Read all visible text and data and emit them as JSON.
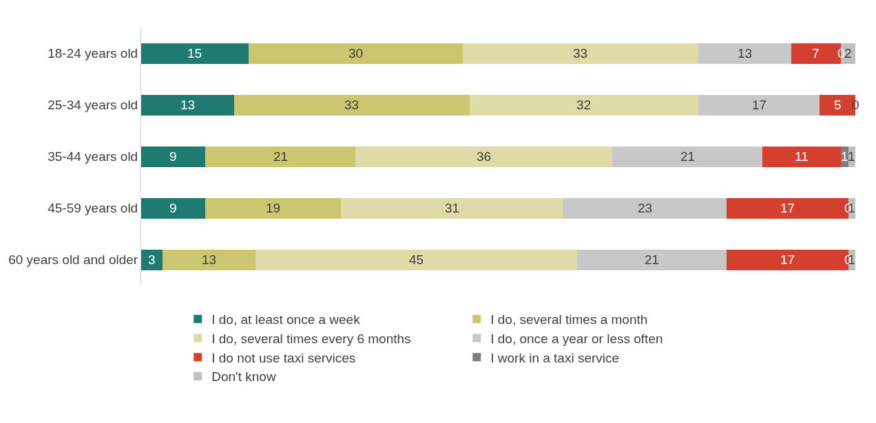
{
  "chart_data": {
    "type": "bar",
    "orientation": "horizontal",
    "stacked": true,
    "legend": "bottom",
    "categories": [
      "18-24 years old",
      "25-34 years old",
      "35-44 years old",
      "45-59 years old",
      "60 years old and older"
    ],
    "series": [
      {
        "name": "I do, at least once a week",
        "color": "#1f7b72",
        "values": [
          15,
          13,
          9,
          9,
          3
        ],
        "value_labels": [
          "15",
          "13",
          "9",
          "9",
          "3"
        ]
      },
      {
        "name": "I do, several times a month",
        "color": "#cbc66f",
        "values": [
          30,
          33,
          21,
          19,
          13
        ],
        "value_labels": [
          "30",
          "33",
          "21",
          "19",
          "13"
        ]
      },
      {
        "name": "I do, several times every 6 months",
        "color": "#dfdba8",
        "values": [
          33,
          32,
          36,
          31,
          45
        ],
        "value_labels": [
          "33",
          "32",
          "36",
          "31",
          "45"
        ]
      },
      {
        "name": "I do, once a year or less often",
        "color": "#c8c8c8",
        "values": [
          13,
          17,
          21,
          23,
          21
        ],
        "value_labels": [
          "13",
          "17",
          "21",
          "23",
          "21"
        ]
      },
      {
        "name": "I do not use taxi services",
        "color": "#d44030",
        "values": [
          7,
          5,
          11,
          17,
          17
        ],
        "value_labels": [
          "7",
          "5",
          "11",
          "17",
          "17"
        ]
      },
      {
        "name": "I work in a taxi service",
        "color": "#7f7f7f",
        "values": [
          0,
          0,
          1,
          0,
          0
        ],
        "value_labels": [
          "0",
          null,
          "1",
          "0",
          "0"
        ]
      },
      {
        "name": "Don't know",
        "color": "#c0c0c0",
        "values": [
          2,
          0,
          1,
          1,
          1
        ],
        "value_labels": [
          "2",
          "0",
          "1",
          "1",
          "1"
        ]
      }
    ]
  }
}
